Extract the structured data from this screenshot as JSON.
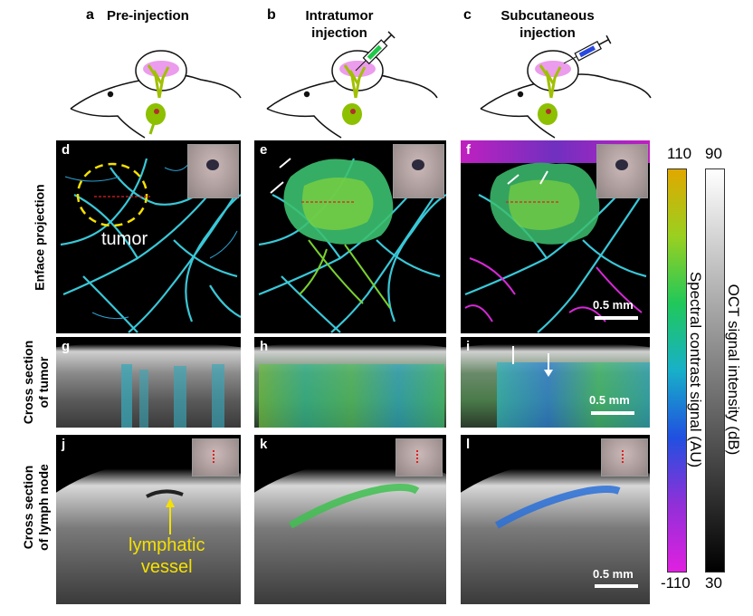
{
  "panels": {
    "a": {
      "letter": "a",
      "title": "Pre-injection"
    },
    "b": {
      "letter": "b",
      "title_line1": "Intratumor",
      "title_line2": "injection"
    },
    "c": {
      "letter": "c",
      "title_line1": "Subcutaneous",
      "title_line2": "injection"
    },
    "d": "d",
    "e": "e",
    "f": "f",
    "g": "g",
    "h": "h",
    "i": "i",
    "j": "j",
    "k": "k",
    "l": "l"
  },
  "row_labels": {
    "enface": "Enface projection",
    "tumor_line1": "Cross section",
    "tumor_line2": "of tumor",
    "lymph_line1": "Cross section",
    "lymph_line2": "of lymph node"
  },
  "annotations": {
    "tumor": "tumor",
    "lymphatic_line1": "lymphatic",
    "lymphatic_line2": "vessel"
  },
  "scale_bars": {
    "label": "0.5 mm"
  },
  "colorbars": {
    "spectral": {
      "label": "Spectral contrast signal (AU)",
      "max": "110",
      "min": "-110"
    },
    "oct": {
      "label": "OCT signal intensity (dB)",
      "max": "90",
      "min": "30"
    }
  },
  "colors": {
    "annotation_yellow": "#f5e000",
    "vessel_cyan": "#39c8d8",
    "spectral_gradient": [
      "#e0a800",
      "#9ad020",
      "#20c85a",
      "#18b0c8",
      "#2050e0",
      "#9030d8",
      "#e020e0"
    ]
  }
}
